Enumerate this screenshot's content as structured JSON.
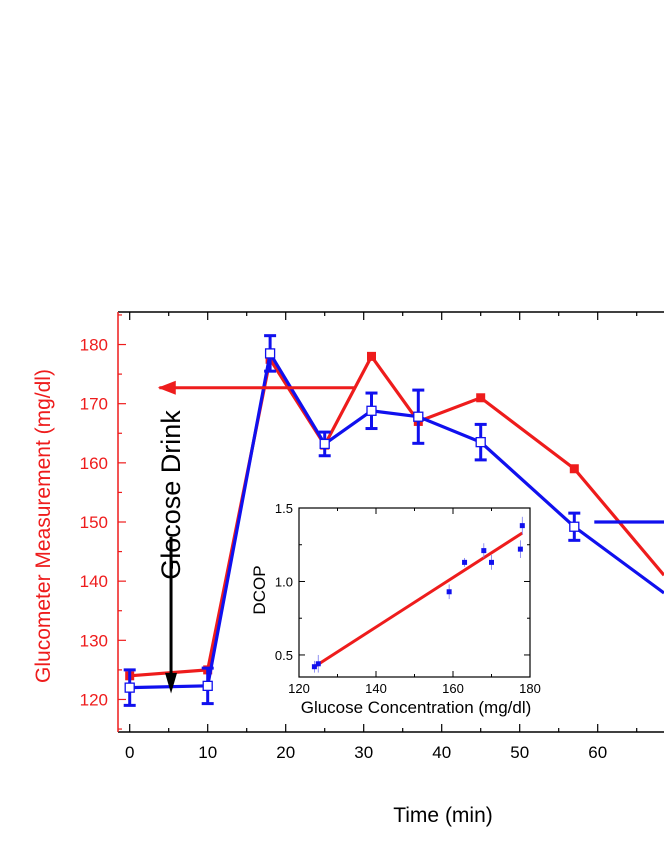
{
  "colors": {
    "red": "#ee1c1c",
    "blue": "#1010ee",
    "axis": "#000000"
  },
  "chart_data": [
    {
      "type": "line",
      "xlabel": "Time (min)",
      "ylabel": "Glucometer Measurement (mg/dl)",
      "xlim": [
        -1.5,
        68.5
      ],
      "ylim": [
        114.5,
        185.5
      ],
      "xticks": [
        0,
        10,
        20,
        30,
        40,
        50,
        60
      ],
      "yticks": [
        120,
        130,
        140,
        150,
        160,
        170,
        180
      ],
      "annotation": "Glocose Drink",
      "series": [
        {
          "color": "#ee1c1c",
          "marker": "filled-square",
          "x": [
            0,
            10,
            18,
            25,
            31,
            37,
            45,
            57,
            68.5
          ],
          "y": [
            124,
            125,
            177.5,
            163,
            178,
            167,
            171,
            159,
            141
          ]
        },
        {
          "color": "#1010ee",
          "marker": "open-square",
          "x": [
            0,
            10,
            18,
            25,
            31,
            37,
            45,
            57,
            68.5
          ],
          "y": [
            122,
            122.3,
            178.5,
            163.2,
            168.8,
            167.8,
            163.5,
            149.2,
            138
          ],
          "err": [
            3,
            3,
            3,
            2,
            3,
            4.5,
            3,
            2.3,
            null
          ]
        }
      ]
    },
    {
      "type": "scatter",
      "xlabel": "Glucose Concentration (mg/dl)",
      "ylabel": "DCOP",
      "xlim": [
        120,
        180
      ],
      "ylim": [
        0.35,
        1.5
      ],
      "xticks": [
        120,
        140,
        160,
        180
      ],
      "yticks": [
        0.5,
        1.0,
        1.5
      ],
      "ytick_labels": [
        "0.5",
        "1.0",
        "1.5"
      ],
      "points": {
        "x": [
          124,
          125,
          159,
          163,
          168,
          170,
          177.5,
          178
        ],
        "y": [
          0.42,
          0.44,
          0.93,
          1.13,
          1.21,
          1.13,
          1.22,
          1.38
        ],
        "err": [
          0.04,
          0.06,
          0.05,
          0.03,
          0.05,
          0.05,
          0.06,
          0.06
        ]
      },
      "fit": {
        "x": [
          124,
          178
        ],
        "y": [
          0.42,
          1.33
        ]
      }
    }
  ]
}
